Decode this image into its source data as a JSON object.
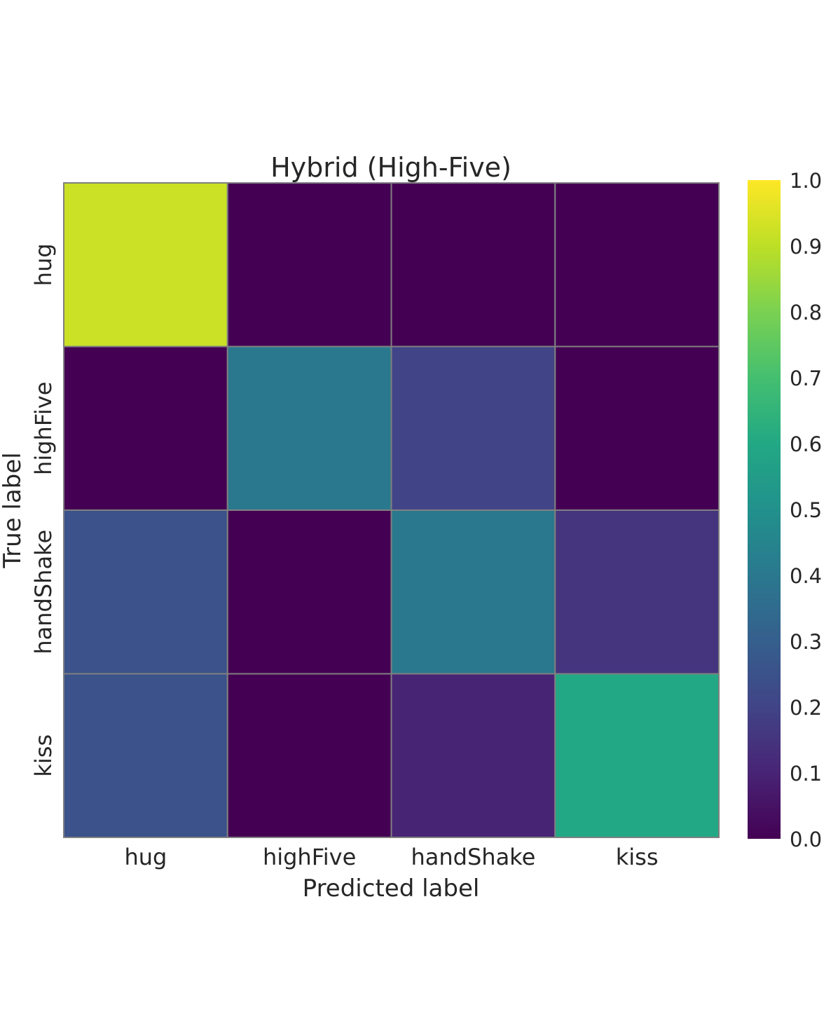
{
  "chart_data": {
    "type": "heatmap",
    "title": "Hybrid (High-Five)",
    "xlabel": "Predicted label",
    "ylabel": "True label",
    "x_categories": [
      "hug",
      "highFive",
      "handShake",
      "kiss"
    ],
    "y_categories": [
      "hug",
      "highFive",
      "handShake",
      "kiss"
    ],
    "values": [
      [
        0.92,
        0.0,
        0.0,
        0.0
      ],
      [
        0.0,
        0.4,
        0.2,
        0.0
      ],
      [
        0.25,
        0.0,
        0.4,
        0.15
      ],
      [
        0.25,
        0.0,
        0.1,
        0.6
      ]
    ],
    "colormap": "viridis",
    "vmin": 0.0,
    "vmax": 1.0,
    "colorbar_ticks": [
      "0.0",
      "0.1",
      "0.2",
      "0.3",
      "0.4",
      "0.5",
      "0.6",
      "0.7",
      "0.8",
      "0.9",
      "1.0"
    ],
    "grid_line_color": "#808080"
  }
}
